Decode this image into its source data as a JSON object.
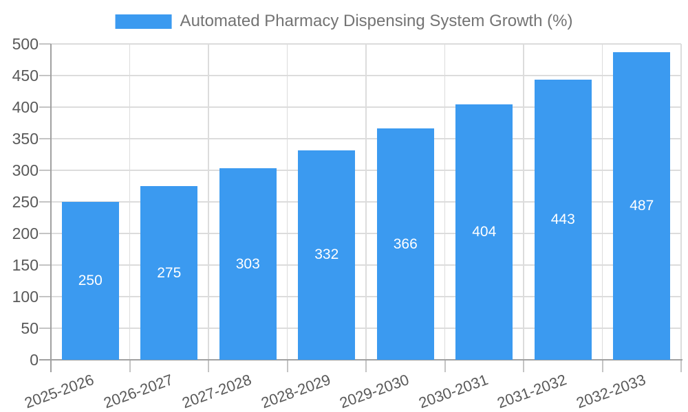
{
  "chart_data": {
    "type": "bar",
    "title": "Automated Pharmacy Dispensing System Growth (%)",
    "legend": [
      "Automated Pharmacy Dispensing System Growth (%)"
    ],
    "legend_position": "top-center",
    "categories": [
      "2025-2026",
      "2026-2027",
      "2027-2028",
      "2028-2029",
      "2029-2030",
      "2030-2031",
      "2031-2032",
      "2032-2033"
    ],
    "values": [
      250,
      275,
      303,
      332,
      366,
      404,
      443,
      487
    ],
    "xlabel": "",
    "ylabel": "",
    "ylim": [
      0,
      500
    ],
    "yticks": [
      0,
      50,
      100,
      150,
      200,
      250,
      300,
      350,
      400,
      450,
      500
    ],
    "grid": "horizontal-and-vertical",
    "value_labels": "inside-center",
    "x_label_rotation_deg": -20,
    "colors": {
      "bar": "#3B9AF0",
      "bar_value_text": "#FFFFFF",
      "grid_line": "#DCDCDC",
      "tick_mark": "#C4C4C4",
      "axis_line": "#A0A0A0",
      "tick_text": "#595959",
      "legend_text": "#737373",
      "background": "#FFFFFF"
    }
  }
}
